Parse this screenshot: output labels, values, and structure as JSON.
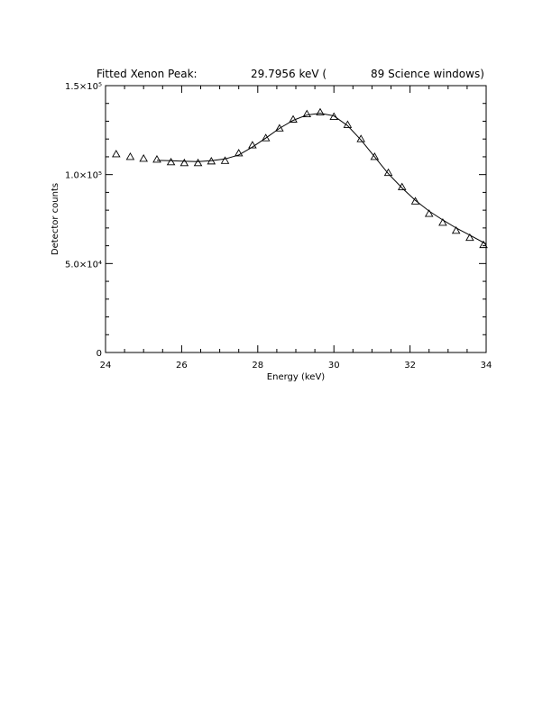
{
  "title": {
    "left": "Fitted Xenon Peak:",
    "middle": "29.7956 keV (",
    "right": "89 Science windows)"
  },
  "chart_data": {
    "type": "scatter",
    "title": "Fitted Xenon Peak:    29.7956 keV (    89 Science windows)",
    "xlabel": "Energy (keV)",
    "ylabel": "Detector counts",
    "xlim": [
      24,
      34
    ],
    "ylim": [
      0,
      150000
    ],
    "xticks": [
      {
        "value": 24,
        "label": "24"
      },
      {
        "value": 26,
        "label": "26"
      },
      {
        "value": 28,
        "label": "28"
      },
      {
        "value": 30,
        "label": "30"
      },
      {
        "value": 32,
        "label": "32"
      },
      {
        "value": 34,
        "label": "34"
      }
    ],
    "yticks": [
      {
        "value": 0,
        "label": "0"
      },
      {
        "value": 50000,
        "label": "5.0×10⁴"
      },
      {
        "value": 100000,
        "label": "1.0×10⁵"
      },
      {
        "value": 150000,
        "label": "1.5×10⁵"
      }
    ],
    "series": [
      {
        "kind": "markers",
        "marker": "triangle",
        "x": [
          24.28,
          24.65,
          25.0,
          25.35,
          25.72,
          26.07,
          26.43,
          26.78,
          27.14,
          27.5,
          27.86,
          28.21,
          28.57,
          28.93,
          29.29,
          29.64,
          30.0,
          30.36,
          30.71,
          31.07,
          31.43,
          31.79,
          32.14,
          32.5,
          32.86,
          33.21,
          33.57,
          33.93
        ],
        "y": [
          111500,
          110000,
          109000,
          108500,
          107000,
          106500,
          106500,
          107500,
          107800,
          112000,
          116500,
          120500,
          126000,
          131000,
          134000,
          135000,
          132500,
          128000,
          120000,
          110000,
          101000,
          93000,
          85000,
          78000,
          73000,
          68500,
          64500,
          60500
        ]
      },
      {
        "kind": "line",
        "x": [
          25.35,
          25.72,
          26.07,
          26.43,
          26.78,
          27.14,
          27.5,
          27.86,
          28.21,
          28.57,
          28.93,
          29.29,
          29.64,
          30.0,
          30.36,
          30.71,
          31.07,
          31.43,
          31.79,
          32.14,
          32.5,
          32.86,
          33.21,
          33.57,
          34.0
        ],
        "y": [
          108000,
          107800,
          107500,
          107300,
          107800,
          108800,
          111000,
          115500,
          120500,
          126000,
          130500,
          133500,
          134500,
          133000,
          127500,
          119500,
          110000,
          100500,
          92500,
          85500,
          79500,
          74500,
          70000,
          66000,
          61000
        ]
      }
    ],
    "grid": false,
    "legend": "none"
  }
}
